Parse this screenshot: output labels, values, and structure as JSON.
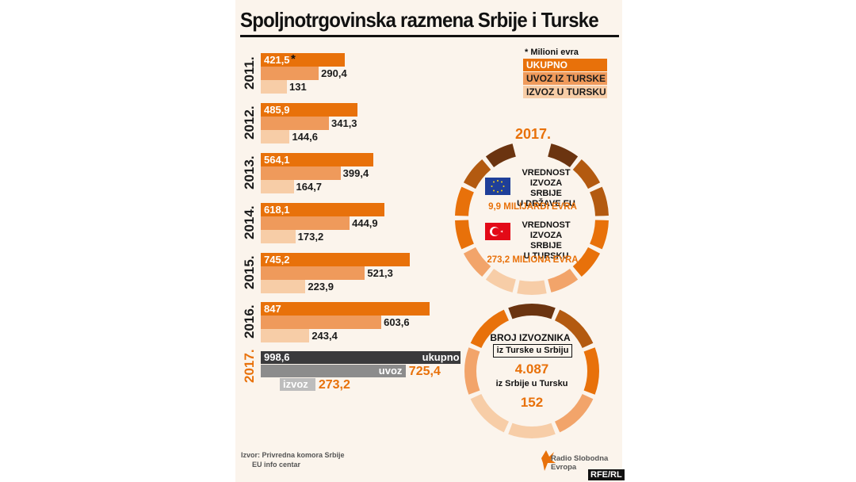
{
  "title": "Spoljnotrgovinska razmena Srbije i Turske",
  "legend": {
    "note": "* Milioni evra",
    "ukupno": "UKUPNO",
    "uvoz": "UVOZ IZ TURSKE",
    "izvoz": "IZVOZ U TURSKU"
  },
  "colors": {
    "ukupno": "#e8710a",
    "uvoz": "#ef9a5b",
    "izvoz": "#f7cda7",
    "ukupno_2017": "#3a3a3c",
    "uvoz_2017": "#8c8c8c",
    "izvoz_2017": "#bdbdbd"
  },
  "chart_data": {
    "type": "bar",
    "orientation": "horizontal",
    "categories": [
      "2011.",
      "2012.",
      "2013.",
      "2014.",
      "2015.",
      "2016.",
      "2017."
    ],
    "series": [
      {
        "name": "UKUPNO",
        "values": [
          421.5,
          485.9,
          564.1,
          618.1,
          745.2,
          847,
          998.6
        ],
        "labels": [
          "421,5",
          "485,9",
          "564,1",
          "618,1",
          "745,2",
          "847",
          "998,6"
        ]
      },
      {
        "name": "UVOZ IZ TURSKE",
        "values": [
          290.4,
          341.3,
          399.4,
          444.9,
          521.3,
          603.6,
          725.4
        ],
        "labels": [
          "290,4",
          "341,3",
          "399,4",
          "444,9",
          "521,3",
          "603,6",
          "725,4"
        ]
      },
      {
        "name": "IZVOZ U TURSKU",
        "values": [
          131,
          144.6,
          164.7,
          173.2,
          223.9,
          243.4,
          273.2
        ],
        "labels": [
          "131",
          "144,6",
          "164,7",
          "173,2",
          "223,9",
          "243,4",
          "273,2"
        ]
      }
    ],
    "highlight_2017_labels": {
      "ukupno": "ukupno",
      "uvoz": "uvoz",
      "izvoz": "izvoz"
    }
  },
  "circle1": {
    "year": "2017.",
    "eu_text": [
      "VREDNOST",
      "IZVOZA SRBIJE",
      "U DRŽAVE EU"
    ],
    "eu_value": "9,9 MILIJARDI EVRA",
    "tr_text": [
      "VREDNOST",
      "IZVOZA SRBIJE",
      "U TURSKU"
    ],
    "tr_value": "273,2 MILIONA EVRA",
    "eu_flag_icon": "eu-flag-icon",
    "tr_flag_icon": "turkey-flag-icon"
  },
  "circle2": {
    "title": "BROJ IZVOZNIKA",
    "sub1": "iz Turske u Srbiju",
    "num1": "4.087",
    "sub2": "iz Srbije u Tursku",
    "num2": "152"
  },
  "source": {
    "line1": "Izvor: Privredna komora Srbije",
    "line2": "EU info centar"
  },
  "logo": {
    "line1": "Radio Slobodna",
    "line2": "Evropa",
    "icon": "rfe-logo-icon"
  },
  "credit": "RFE/RL"
}
